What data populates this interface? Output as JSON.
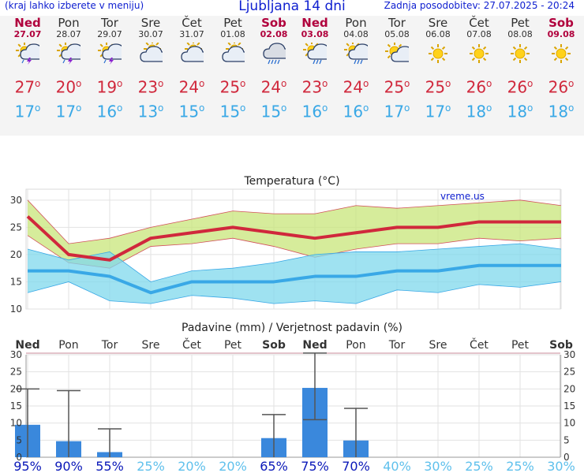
{
  "header": {
    "note": "(kraj lahko izberete v meniju)",
    "title": "Ljubljana 14 dni",
    "updated": "Zadnja posodobitev: 27.07.2025 - 20:24",
    "watermark": "vreme.us"
  },
  "days": [
    {
      "name": "Ned",
      "date": "27.07",
      "icon": "storm-sun-icon",
      "max": "27",
      "min": "17",
      "weekend": true
    },
    {
      "name": "Pon",
      "date": "28.07",
      "icon": "storm-sun-icon",
      "max": "20",
      "min": "17",
      "weekend": false
    },
    {
      "name": "Tor",
      "date": "29.07",
      "icon": "storm-sun-icon",
      "max": "19",
      "min": "16",
      "weekend": false
    },
    {
      "name": "Sre",
      "date": "30.07",
      "icon": "cloud-sun-icon",
      "max": "23",
      "min": "13",
      "weekend": false
    },
    {
      "name": "Čet",
      "date": "31.07",
      "icon": "cloud-sun-icon",
      "max": "24",
      "min": "15",
      "weekend": false
    },
    {
      "name": "Pet",
      "date": "01.08",
      "icon": "cloud-sun-icon",
      "max": "25",
      "min": "15",
      "weekend": false
    },
    {
      "name": "Sob",
      "date": "02.08",
      "icon": "rain-cloud-icon",
      "max": "24",
      "min": "15",
      "weekend": true
    },
    {
      "name": "Ned",
      "date": "03.08",
      "icon": "rain-sun-icon",
      "max": "23",
      "min": "16",
      "weekend": true
    },
    {
      "name": "Pon",
      "date": "04.08",
      "icon": "rain-sun-icon",
      "max": "24",
      "min": "16",
      "weekend": false
    },
    {
      "name": "Tor",
      "date": "05.08",
      "icon": "partly-sunny-icon",
      "max": "25",
      "min": "17",
      "weekend": false
    },
    {
      "name": "Sre",
      "date": "06.08",
      "icon": "sun-icon",
      "max": "25",
      "min": "17",
      "weekend": false
    },
    {
      "name": "Čet",
      "date": "07.08",
      "icon": "sun-icon",
      "max": "26",
      "min": "18",
      "weekend": false
    },
    {
      "name": "Pet",
      "date": "08.08",
      "icon": "sun-icon",
      "max": "26",
      "min": "18",
      "weekend": false
    },
    {
      "name": "Sob",
      "date": "09.08",
      "icon": "sun-icon",
      "max": "26",
      "min": "18",
      "weekend": true
    }
  ],
  "colors": {
    "max": "#d0283c",
    "min": "#39a8e6",
    "weekend": "#b0003c",
    "bar": "#3a88dc"
  },
  "chart_data": [
    {
      "type": "line",
      "title": "Temperatura (°C)",
      "categories": [
        "Ned",
        "Pon",
        "Tor",
        "Sre",
        "Čet",
        "Pet",
        "Sob",
        "Ned",
        "Pon",
        "Tor",
        "Sre",
        "Čet",
        "Pet",
        "Sob"
      ],
      "ylim": [
        10,
        32
      ],
      "yticks": [
        10,
        15,
        20,
        25,
        30
      ],
      "series": [
        {
          "name": "max",
          "values": [
            27,
            20,
            19,
            23,
            24,
            25,
            24,
            23,
            24,
            25,
            25,
            26,
            26,
            26
          ],
          "low": [
            23.5,
            18.5,
            17.5,
            21.5,
            22,
            23,
            21.5,
            19.5,
            21,
            22,
            22,
            23,
            22.5,
            23
          ],
          "high": [
            30,
            22,
            23,
            25,
            26.5,
            28,
            27.5,
            27.5,
            29,
            28.5,
            29,
            29.5,
            30,
            29
          ]
        },
        {
          "name": "min",
          "values": [
            17,
            17,
            16,
            13,
            15,
            15,
            15,
            16,
            16,
            17,
            17,
            18,
            18,
            18
          ],
          "low": [
            13,
            15,
            11.5,
            11,
            12.5,
            12,
            11,
            11.5,
            11,
            13.5,
            13,
            14.5,
            14,
            15
          ],
          "high": [
            21,
            19,
            20.5,
            15,
            17,
            17.5,
            18.5,
            20,
            20.5,
            20.5,
            21,
            21.5,
            22,
            21
          ]
        }
      ]
    },
    {
      "type": "bar",
      "title": "Padavine (mm) / Verjetnost padavin (%)",
      "categories": [
        "Ned",
        "Pon",
        "Tor",
        "Sre",
        "Čet",
        "Pet",
        "Sob",
        "Ned",
        "Pon",
        "Tor",
        "Sre",
        "Čet",
        "Pet",
        "Sob"
      ],
      "ylim": [
        0,
        30
      ],
      "yticks": [
        0,
        5,
        10,
        15,
        20,
        25,
        30
      ],
      "values": [
        9.5,
        4.7,
        1.5,
        0,
        0,
        0,
        5.6,
        20.3,
        4.9,
        0,
        0,
        0,
        0,
        0
      ],
      "error_low": [
        0,
        0,
        0,
        null,
        null,
        null,
        0,
        11,
        0,
        null,
        null,
        null,
        null,
        null
      ],
      "error_high": [
        20,
        19.5,
        8.3,
        null,
        null,
        null,
        12.5,
        30.5,
        14.3,
        null,
        null,
        null,
        null,
        null
      ],
      "probability": [
        "95%",
        "90%",
        "55%",
        "25%",
        "20%",
        "20%",
        "65%",
        "75%",
        "70%",
        "40%",
        "30%",
        "25%",
        "25%",
        "30%"
      ],
      "probability_values": [
        95,
        90,
        55,
        25,
        20,
        20,
        65,
        75,
        70,
        40,
        30,
        25,
        25,
        30
      ]
    }
  ]
}
